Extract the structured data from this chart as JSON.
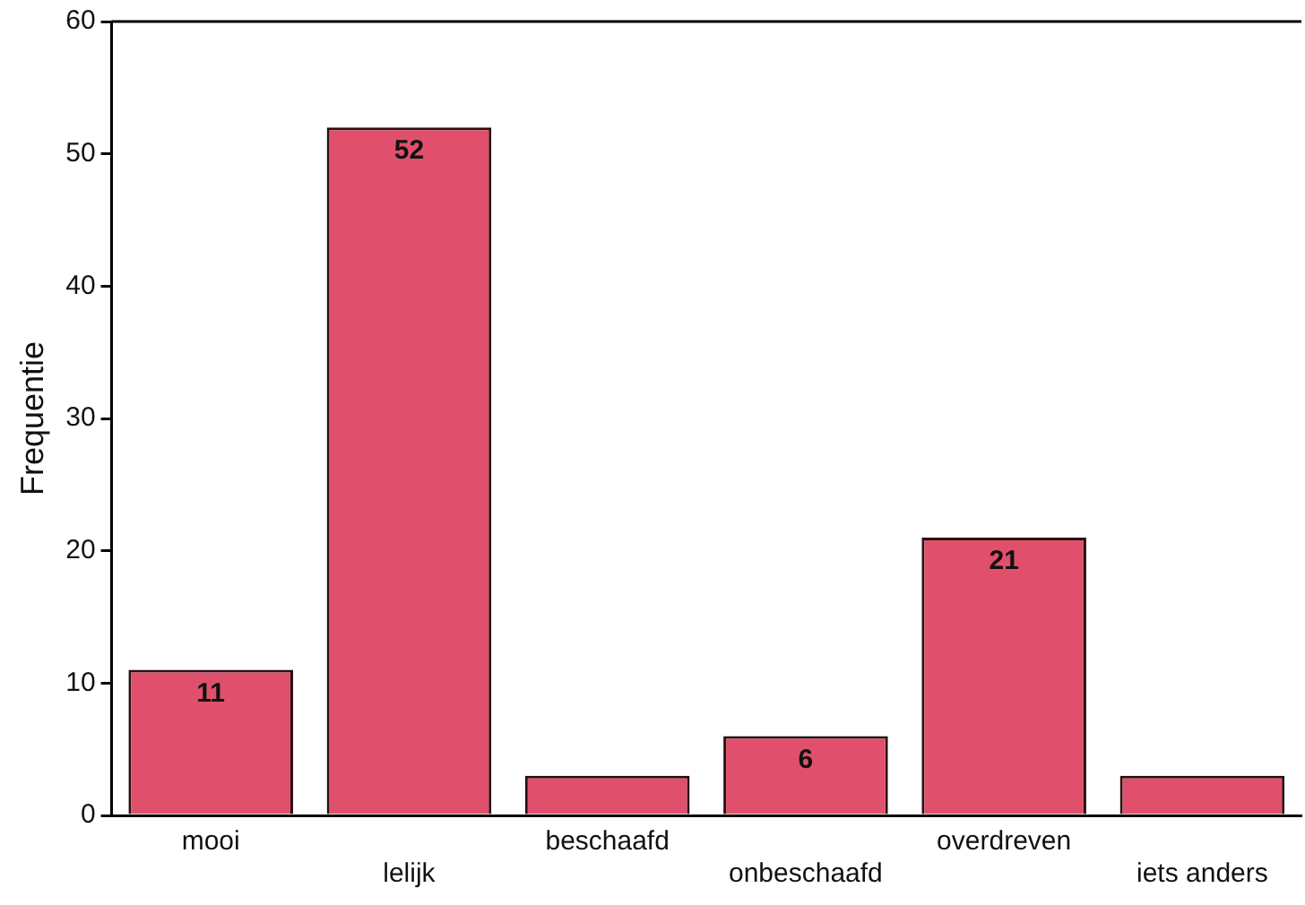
{
  "chart_data": {
    "type": "bar",
    "ylabel": "Frequentie",
    "categories": [
      "mooi",
      "lelijk",
      "beschaafd",
      "onbeschaafd",
      "overdreven",
      "iets anders"
    ],
    "values": [
      11,
      52,
      3,
      6,
      21,
      3
    ],
    "value_labels": [
      "11",
      "52",
      null,
      "6",
      "21",
      null
    ],
    "color": "#e0506c",
    "ylim": [
      0,
      60
    ],
    "yticks": [
      0,
      10,
      20,
      30,
      40,
      50,
      60
    ],
    "grid": false,
    "legend": false
  }
}
